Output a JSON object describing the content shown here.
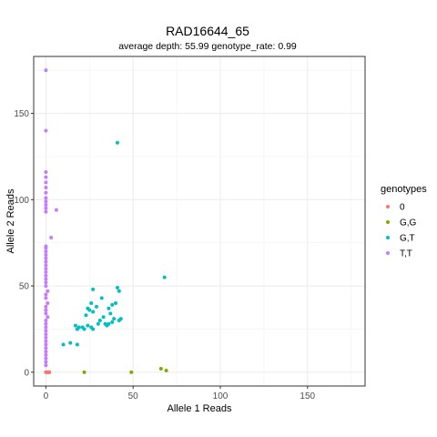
{
  "chart_data": {
    "type": "scatter",
    "title": "RAD16644_65",
    "subtitle": "average depth:  55.99  genotype_rate:  0.99",
    "xlabel": "Allele 1 Reads",
    "ylabel": "Allele 2 Reads",
    "xlim": [
      -7,
      183
    ],
    "ylim": [
      -8,
      183
    ],
    "x_ticks": [
      0,
      50,
      100,
      150
    ],
    "y_ticks": [
      0,
      50,
      100,
      150
    ],
    "x_tick_labels": [
      "0",
      "50",
      "100",
      "150"
    ],
    "y_tick_labels": [
      "0",
      "50",
      "100",
      "150"
    ],
    "grid": true,
    "legend_position": "right",
    "legend_title": "genotypes",
    "series": [
      {
        "name": "0",
        "color": "#F8766D",
        "points": [
          [
            0,
            0
          ],
          [
            0.5,
            0
          ],
          [
            1,
            0
          ],
          [
            1.5,
            0
          ],
          [
            2,
            0
          ]
        ]
      },
      {
        "name": "G,G",
        "color": "#7CAE00",
        "points": [
          [
            22,
            0
          ],
          [
            49,
            0
          ],
          [
            66,
            2
          ],
          [
            69,
            1
          ]
        ]
      },
      {
        "name": "G,T",
        "color": "#00BFC4",
        "points": [
          [
            41,
            133
          ],
          [
            68,
            55
          ],
          [
            27,
            48
          ],
          [
            41,
            49
          ],
          [
            42,
            47
          ],
          [
            26,
            40
          ],
          [
            32,
            43
          ],
          [
            24,
            37
          ],
          [
            27,
            35
          ],
          [
            29,
            38
          ],
          [
            36,
            37
          ],
          [
            38,
            39
          ],
          [
            40,
            40
          ],
          [
            23,
            33
          ],
          [
            25,
            36
          ],
          [
            33,
            32
          ],
          [
            37,
            34
          ],
          [
            39,
            31
          ],
          [
            42,
            30
          ],
          [
            17,
            27
          ],
          [
            19,
            26
          ],
          [
            21,
            26
          ],
          [
            24,
            27
          ],
          [
            26,
            26
          ],
          [
            30,
            28
          ],
          [
            31,
            30
          ],
          [
            34,
            28
          ],
          [
            35,
            27
          ],
          [
            36,
            28
          ],
          [
            38,
            29
          ],
          [
            43,
            31
          ],
          [
            18,
            25
          ],
          [
            22,
            25
          ],
          [
            27,
            25
          ],
          [
            10,
            16
          ],
          [
            14,
            17
          ],
          [
            18,
            16
          ]
        ]
      },
      {
        "name": "T,T",
        "color": "#C77CFF",
        "points": [
          [
            0,
            175
          ],
          [
            0,
            140
          ],
          [
            0,
            116
          ],
          [
            0,
            113
          ],
          [
            0,
            110
          ],
          [
            0,
            107
          ],
          [
            0,
            104
          ],
          [
            0,
            101
          ],
          [
            0,
            99
          ],
          [
            0,
            97
          ],
          [
            0,
            95
          ],
          [
            0,
            93
          ],
          [
            6,
            94
          ],
          [
            3,
            78
          ],
          [
            0,
            73
          ],
          [
            0,
            72
          ],
          [
            0,
            70
          ],
          [
            0,
            68
          ],
          [
            0,
            66
          ],
          [
            0,
            64
          ],
          [
            0,
            62
          ],
          [
            0,
            60
          ],
          [
            0,
            58
          ],
          [
            0,
            56
          ],
          [
            0,
            54
          ],
          [
            0,
            52
          ],
          [
            0,
            50
          ],
          [
            1,
            47
          ],
          [
            0,
            45
          ],
          [
            0,
            43
          ],
          [
            1,
            40
          ],
          [
            0,
            38
          ],
          [
            0,
            36
          ],
          [
            0,
            34
          ],
          [
            1,
            32
          ],
          [
            0,
            30
          ],
          [
            0,
            28
          ],
          [
            0,
            26
          ],
          [
            0,
            24
          ],
          [
            0,
            22
          ],
          [
            0,
            20
          ],
          [
            0,
            18
          ],
          [
            0,
            16
          ],
          [
            0,
            14
          ],
          [
            0,
            12
          ],
          [
            0,
            10
          ],
          [
            0,
            8
          ],
          [
            0,
            6
          ],
          [
            0,
            4
          ]
        ]
      }
    ]
  }
}
